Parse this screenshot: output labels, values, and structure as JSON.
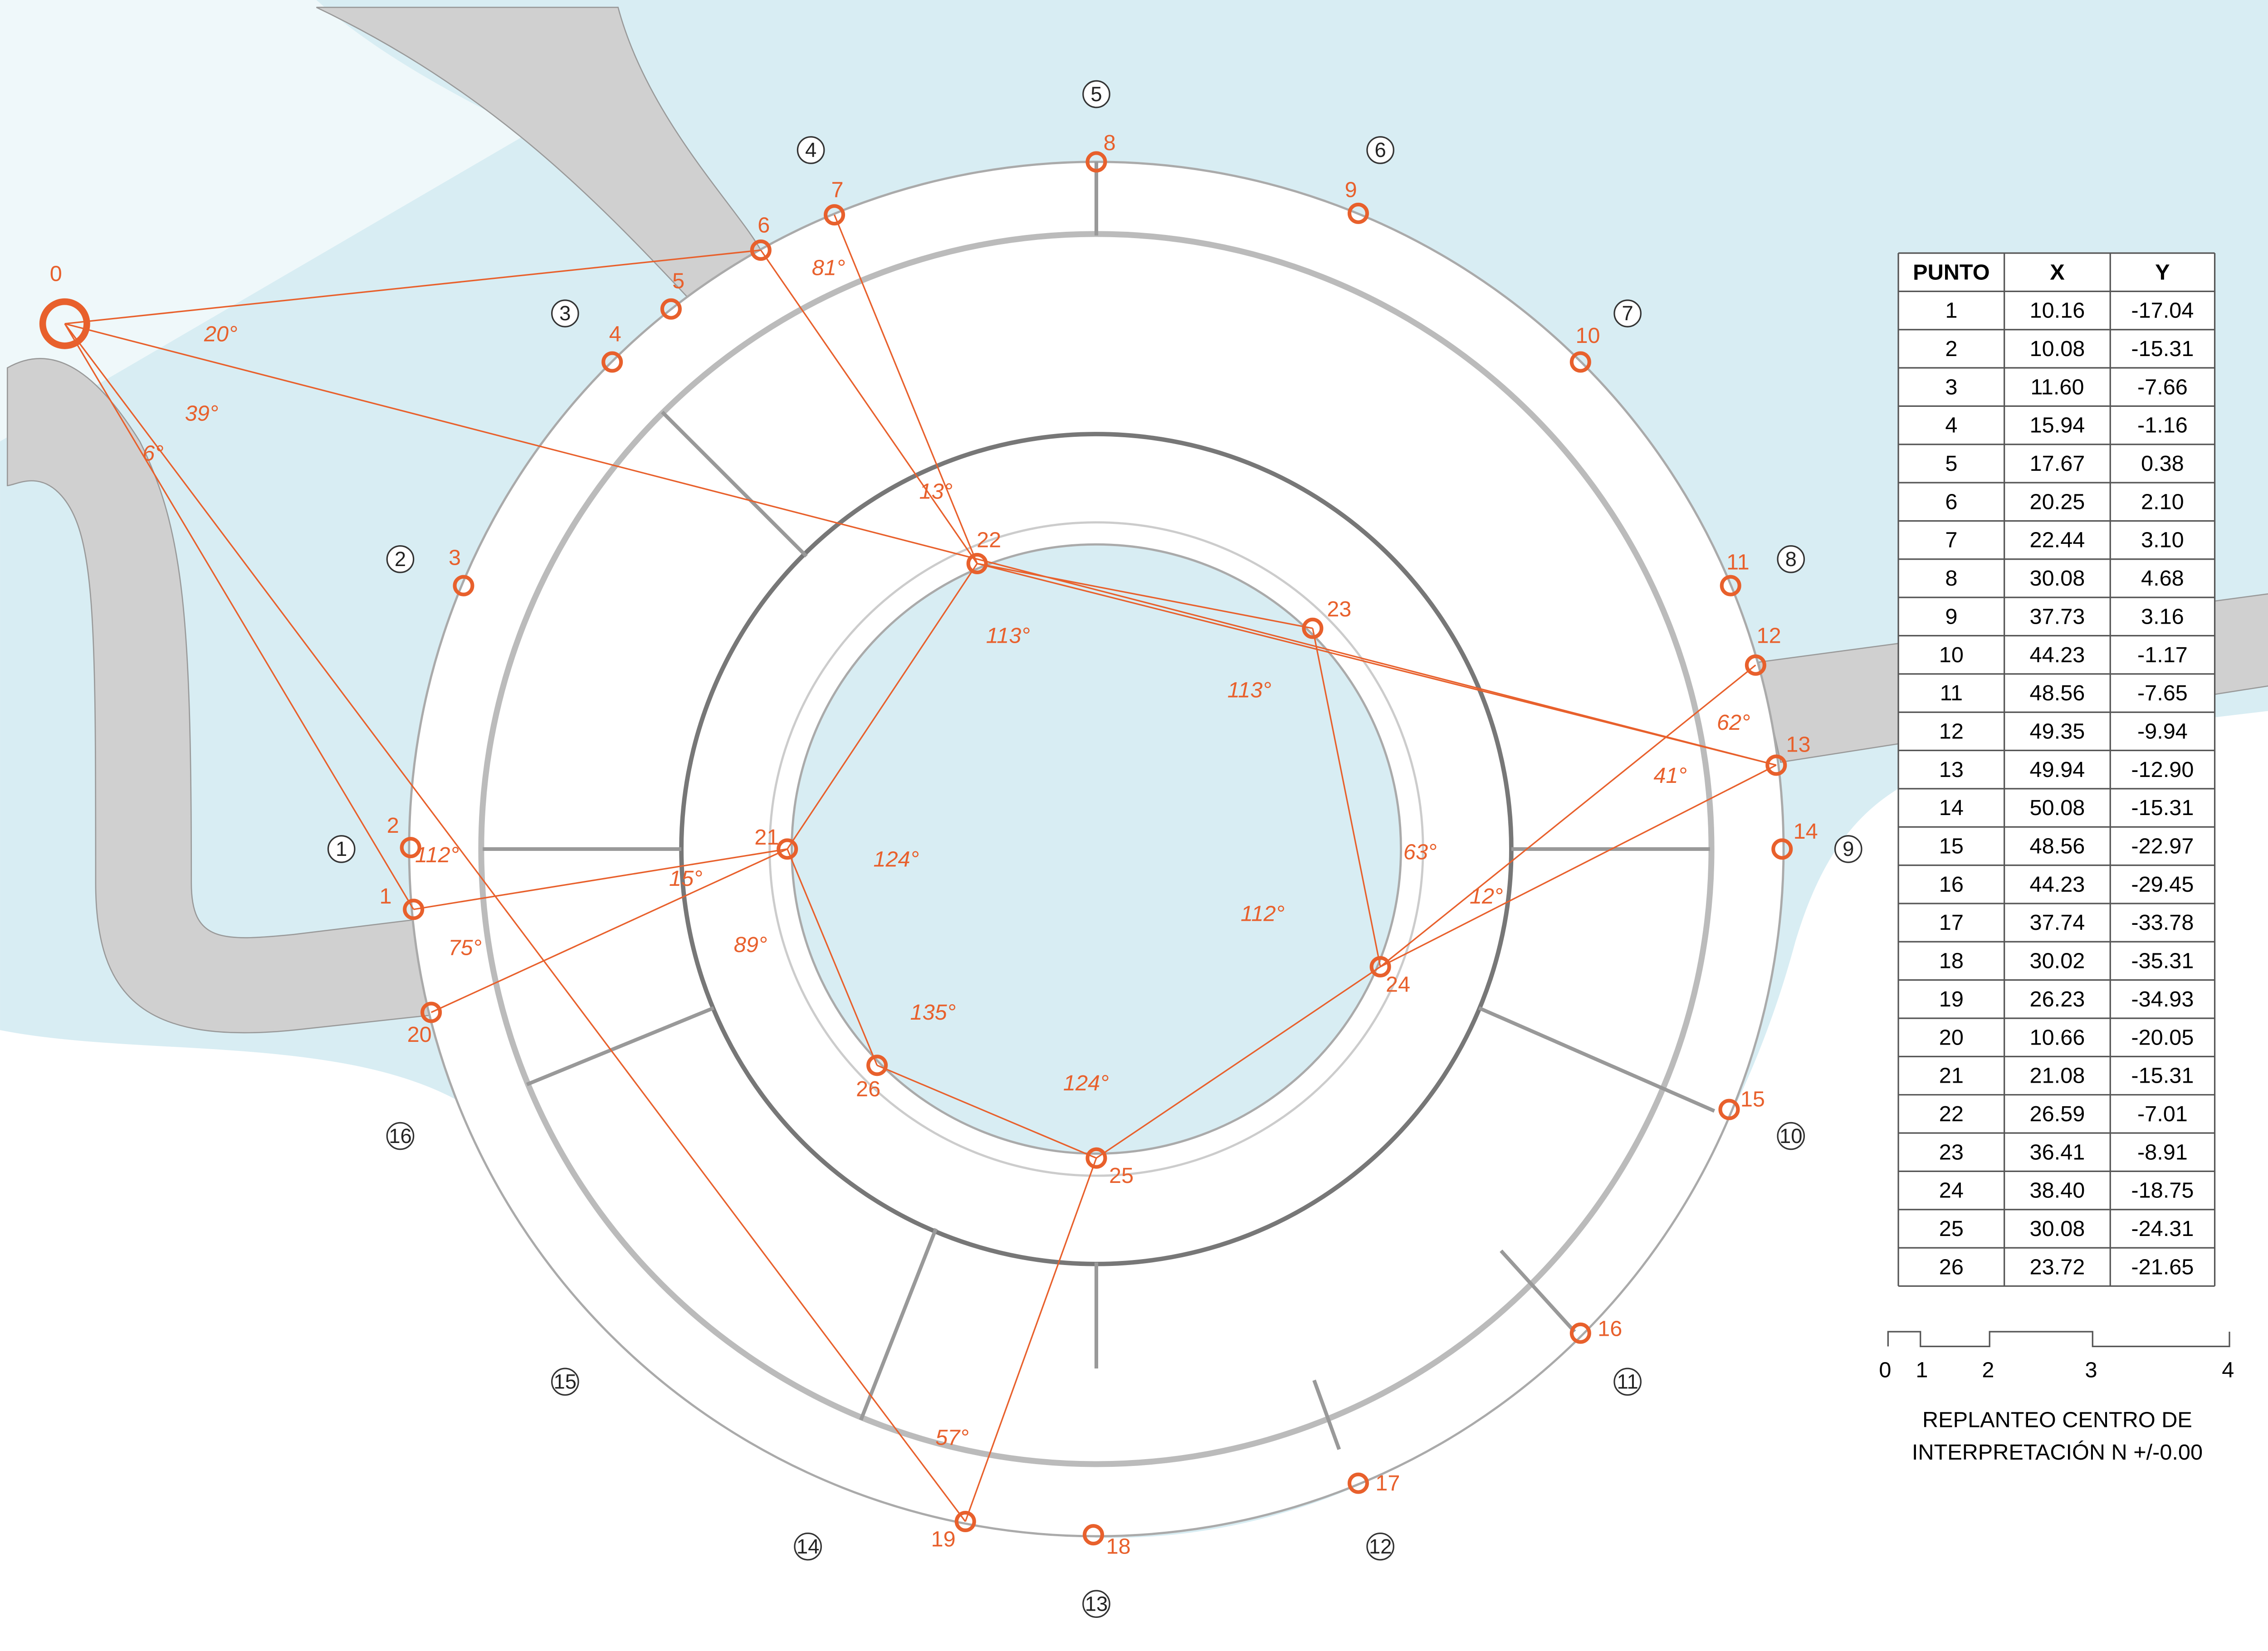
{
  "points": [
    "0",
    "1",
    "2",
    "3",
    "4",
    "5",
    "6",
    "7",
    "8",
    "9",
    "10",
    "11",
    "12",
    "13",
    "14",
    "15",
    "16",
    "17",
    "18",
    "19",
    "20",
    "21",
    "22",
    "23",
    "24",
    "25",
    "26"
  ],
  "grid_axes": [
    "1",
    "2",
    "3",
    "4",
    "5",
    "6",
    "7",
    "8",
    "9",
    "10",
    "11",
    "12",
    "13",
    "14",
    "15",
    "16"
  ],
  "angles": [
    "20°",
    "39°",
    "6°",
    "81°",
    "13°",
    "113°",
    "113°",
    "124°",
    "15°",
    "89°",
    "112°",
    "75°",
    "135°",
    "124°",
    "63°",
    "12°",
    "112°",
    "62°",
    "41°",
    "57°"
  ],
  "table": {
    "header": [
      "PUNTO",
      "X",
      "Y"
    ],
    "rows": [
      [
        "1",
        "10.16",
        "-17.04"
      ],
      [
        "2",
        "10.08",
        "-15.31"
      ],
      [
        "3",
        "11.60",
        "-7.66"
      ],
      [
        "4",
        "15.94",
        "-1.16"
      ],
      [
        "5",
        "17.67",
        "0.38"
      ],
      [
        "6",
        "20.25",
        "2.10"
      ],
      [
        "7",
        "22.44",
        "3.10"
      ],
      [
        "8",
        "30.08",
        "4.68"
      ],
      [
        "9",
        "37.73",
        "3.16"
      ],
      [
        "10",
        "44.23",
        "-1.17"
      ],
      [
        "11",
        "48.56",
        "-7.65"
      ],
      [
        "12",
        "49.35",
        "-9.94"
      ],
      [
        "13",
        "49.94",
        "-12.90"
      ],
      [
        "14",
        "50.08",
        "-15.31"
      ],
      [
        "15",
        "48.56",
        "-22.97"
      ],
      [
        "16",
        "44.23",
        "-29.45"
      ],
      [
        "17",
        "37.74",
        "-33.78"
      ],
      [
        "18",
        "30.02",
        "-35.31"
      ],
      [
        "19",
        "26.23",
        "-34.93"
      ],
      [
        "20",
        "10.66",
        "-20.05"
      ],
      [
        "21",
        "21.08",
        "-15.31"
      ],
      [
        "22",
        "26.59",
        "-7.01"
      ],
      [
        "23",
        "36.41",
        "-8.91"
      ],
      [
        "24",
        "38.40",
        "-18.75"
      ],
      [
        "25",
        "30.08",
        "-24.31"
      ],
      [
        "26",
        "23.72",
        "-21.65"
      ]
    ]
  },
  "scale_bar": {
    "labels": [
      "0",
      "1",
      "2",
      "3",
      "4"
    ]
  },
  "title": [
    "REPLANTEO CENTRO DE",
    "INTERPRETACIÓN N +/-0.00"
  ]
}
